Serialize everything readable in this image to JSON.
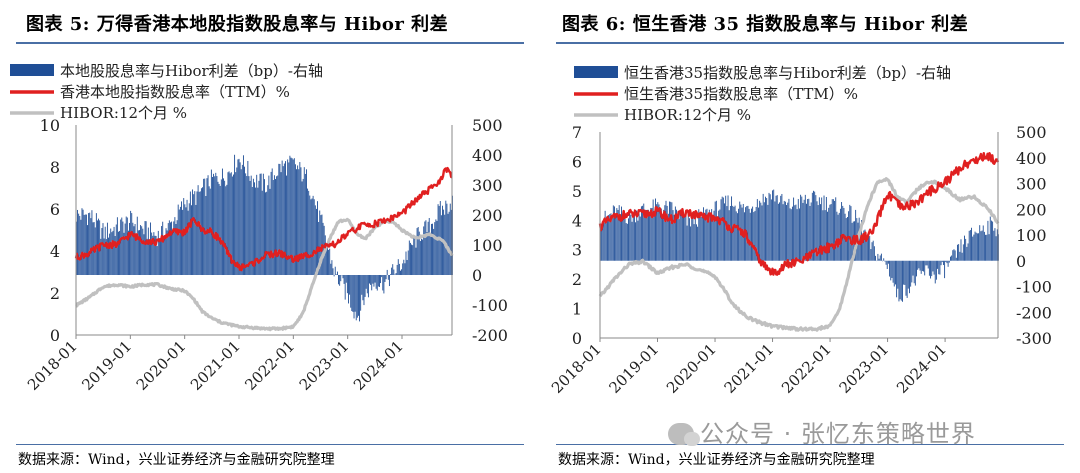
{
  "source": "数据来源：Wind，兴业证券经济与金融研究院整理",
  "watermark": "公众号 · 张忆东策略世界",
  "colors": {
    "bar": "#1f4e96",
    "yield": "#e02020",
    "hibor": "#c0c0c0"
  },
  "chart_data": [
    {
      "type": "bar+line",
      "title": "图表 5:  万得香港本地股指数股息率与 Hibor 利差",
      "legend": [
        "本地股股息率与Hibor利差（bp）-右轴",
        "香港本地股指数股息率（TTM）%",
        "HIBOR:12个月 %"
      ],
      "legend_position": "top-left",
      "grid": false,
      "x_ticks": [
        "2018-01",
        "2019-01",
        "2020-01",
        "2021-01",
        "2022-01",
        "2023-01",
        "2024-01"
      ],
      "x_range": [
        2018.0,
        2024.92
      ],
      "y_left": {
        "range": [
          0,
          10
        ],
        "ticks": [
          0,
          2,
          4,
          6,
          8,
          10
        ]
      },
      "y_right": {
        "range": [
          -200,
          500
        ],
        "ticks": [
          -200,
          -100,
          0,
          100,
          200,
          300,
          400,
          500
        ]
      },
      "series": [
        {
          "name": "本地股股息率与Hibor利差（bp）-右轴",
          "kind": "bar",
          "axis": "right",
          "x": [
            2018.0,
            2018.25,
            2018.5,
            2018.75,
            2019.0,
            2019.25,
            2019.5,
            2019.75,
            2020.0,
            2020.25,
            2020.5,
            2020.75,
            2021.0,
            2021.25,
            2021.5,
            2021.75,
            2022.0,
            2022.25,
            2022.5,
            2022.75,
            2023.0,
            2023.17,
            2023.33,
            2023.5,
            2023.67,
            2023.83,
            2024.0,
            2024.17,
            2024.33,
            2024.5,
            2024.67,
            2024.83,
            2024.92
          ],
          "values": [
            200,
            200,
            140,
            160,
            180,
            150,
            130,
            170,
            240,
            270,
            320,
            330,
            390,
            320,
            300,
            360,
            370,
            320,
            180,
            10,
            -70,
            -140,
            -60,
            -20,
            -30,
            10,
            40,
            100,
            140,
            160,
            210,
            230,
            250
          ]
        },
        {
          "name": "香港本地股指数股息率（TTM）%",
          "kind": "line",
          "axis": "left",
          "x": [
            2018.0,
            2018.25,
            2018.5,
            2018.75,
            2019.0,
            2019.25,
            2019.5,
            2019.75,
            2020.0,
            2020.17,
            2020.33,
            2020.5,
            2020.67,
            2020.83,
            2021.0,
            2021.25,
            2021.5,
            2021.75,
            2022.0,
            2022.25,
            2022.5,
            2022.75,
            2023.0,
            2023.25,
            2023.5,
            2023.75,
            2024.0,
            2024.17,
            2024.33,
            2024.5,
            2024.67,
            2024.83,
            2024.92
          ],
          "values": [
            3.7,
            3.9,
            4.3,
            4.3,
            4.8,
            4.5,
            4.4,
            4.9,
            4.9,
            5.5,
            5.0,
            4.9,
            4.5,
            3.7,
            3.2,
            3.4,
            3.8,
            3.9,
            3.6,
            3.8,
            4.1,
            4.3,
            4.8,
            5.2,
            5.3,
            5.5,
            5.8,
            6.2,
            6.6,
            6.9,
            7.3,
            7.9,
            7.5
          ]
        },
        {
          "name": "HIBOR:12个月 %",
          "kind": "line",
          "axis": "left",
          "x": [
            2018.0,
            2018.25,
            2018.5,
            2018.75,
            2019.0,
            2019.25,
            2019.5,
            2019.75,
            2020.0,
            2020.17,
            2020.33,
            2020.5,
            2020.67,
            2020.83,
            2021.0,
            2021.25,
            2021.5,
            2021.75,
            2022.0,
            2022.17,
            2022.33,
            2022.5,
            2022.67,
            2022.83,
            2023.0,
            2023.17,
            2023.33,
            2023.5,
            2023.67,
            2023.83,
            2024.0,
            2024.25,
            2024.5,
            2024.75,
            2024.92
          ],
          "values": [
            1.4,
            1.8,
            2.3,
            2.4,
            2.3,
            2.4,
            2.4,
            2.2,
            2.1,
            1.7,
            1.1,
            0.8,
            0.6,
            0.5,
            0.4,
            0.35,
            0.3,
            0.3,
            0.4,
            1.0,
            2.2,
            3.5,
            4.6,
            5.4,
            5.5,
            4.8,
            4.6,
            5.1,
            5.4,
            5.4,
            5.0,
            4.6,
            4.8,
            4.5,
            3.8
          ]
        }
      ]
    },
    {
      "type": "bar+line",
      "title": "图表 6:  恒生香港 35 指数股息率与 Hibor 利差",
      "legend": [
        "恒生香港35指数股息率与Hibor利差（bp）-右轴",
        "恒生香港35指数股息率（TTM）%",
        "HIBOR:12个月 %"
      ],
      "legend_position": "top-left",
      "grid": false,
      "x_ticks": [
        "2018-01",
        "2019-01",
        "2020-01",
        "2021-01",
        "2022-01",
        "2023-01",
        "2024-01"
      ],
      "x_range": [
        2018.0,
        2024.92
      ],
      "y_left": {
        "range": [
          0,
          7
        ],
        "ticks": [
          0,
          1,
          2,
          3,
          4,
          5,
          6,
          7
        ]
      },
      "y_right": {
        "range": [
          -300,
          500
        ],
        "ticks": [
          -300,
          -200,
          -100,
          0,
          100,
          200,
          300,
          400,
          500
        ]
      },
      "series": [
        {
          "name": "恒生香港35指数股息率与Hibor利差（bp）-右轴",
          "kind": "bar",
          "axis": "right",
          "x": [
            2018.0,
            2018.25,
            2018.5,
            2018.75,
            2019.0,
            2019.25,
            2019.5,
            2019.75,
            2020.0,
            2020.25,
            2020.5,
            2020.75,
            2021.0,
            2021.25,
            2021.5,
            2021.75,
            2022.0,
            2022.25,
            2022.5,
            2022.67,
            2022.83,
            2023.0,
            2023.17,
            2023.33,
            2023.5,
            2023.67,
            2023.83,
            2024.0,
            2024.17,
            2024.33,
            2024.5,
            2024.67,
            2024.83,
            2024.92
          ],
          "values": [
            150,
            190,
            170,
            200,
            210,
            200,
            150,
            170,
            200,
            230,
            200,
            230,
            260,
            210,
            230,
            240,
            220,
            200,
            150,
            70,
            20,
            -20,
            -140,
            -110,
            -70,
            -40,
            -60,
            -30,
            20,
            70,
            110,
            130,
            140,
            120
          ]
        },
        {
          "name": "恒生香港35指数股息率（TTM）%",
          "kind": "line",
          "axis": "left",
          "x": [
            2018.0,
            2018.25,
            2018.5,
            2018.75,
            2019.0,
            2019.25,
            2019.5,
            2019.75,
            2020.0,
            2020.17,
            2020.33,
            2020.5,
            2020.67,
            2020.83,
            2021.0,
            2021.25,
            2021.5,
            2021.75,
            2022.0,
            2022.25,
            2022.5,
            2022.75,
            2023.0,
            2023.25,
            2023.5,
            2023.75,
            2024.0,
            2024.17,
            2024.33,
            2024.5,
            2024.67,
            2024.83,
            2024.92
          ],
          "values": [
            3.8,
            4.1,
            4.2,
            4.2,
            4.3,
            4.0,
            4.3,
            4.1,
            4.1,
            3.9,
            3.7,
            3.6,
            3.0,
            2.5,
            2.2,
            2.5,
            2.6,
            2.9,
            3.1,
            3.4,
            3.3,
            3.6,
            4.9,
            4.4,
            4.6,
            5.0,
            5.3,
            5.6,
            5.9,
            6.0,
            6.2,
            6.1,
            6.0
          ]
        },
        {
          "name": "HIBOR:12个月 %",
          "kind": "line",
          "axis": "left",
          "x": [
            2018.0,
            2018.25,
            2018.5,
            2018.75,
            2019.0,
            2019.25,
            2019.5,
            2019.75,
            2020.0,
            2020.17,
            2020.33,
            2020.5,
            2020.67,
            2020.83,
            2021.0,
            2021.25,
            2021.5,
            2021.75,
            2022.0,
            2022.17,
            2022.33,
            2022.5,
            2022.67,
            2022.83,
            2023.0,
            2023.17,
            2023.33,
            2023.5,
            2023.67,
            2023.83,
            2024.0,
            2024.25,
            2024.5,
            2024.75,
            2024.92
          ],
          "values": [
            1.4,
            2.0,
            2.5,
            2.6,
            2.2,
            2.4,
            2.5,
            2.3,
            2.1,
            1.6,
            1.1,
            0.8,
            0.6,
            0.5,
            0.4,
            0.35,
            0.3,
            0.3,
            0.4,
            1.0,
            2.2,
            3.5,
            4.6,
            5.3,
            5.4,
            4.8,
            4.6,
            5.0,
            5.3,
            5.3,
            5.1,
            4.7,
            4.8,
            4.4,
            3.9
          ]
        }
      ]
    }
  ]
}
